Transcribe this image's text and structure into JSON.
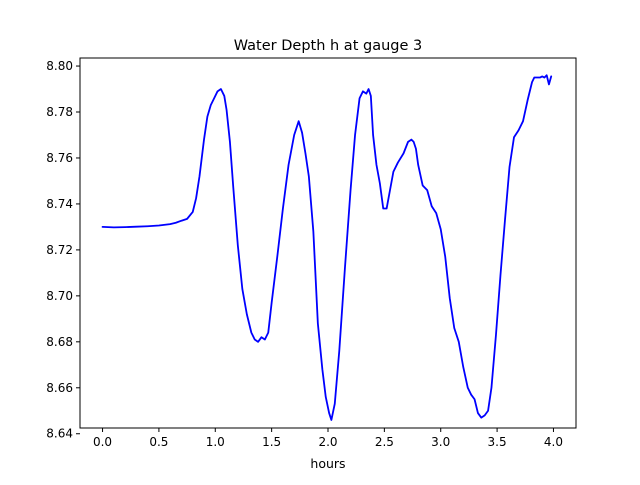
{
  "chart_data": {
    "type": "line",
    "title": "Water Depth h at gauge 3",
    "xlabel": "hours",
    "ylabel": "",
    "xlim": [
      -0.2,
      4.2
    ],
    "ylim": [
      8.6425,
      8.8035
    ],
    "xticks": [
      0.0,
      0.5,
      1.0,
      1.5,
      2.0,
      2.5,
      3.0,
      3.5,
      4.0
    ],
    "xtick_labels": [
      "0.0",
      "0.5",
      "1.0",
      "1.5",
      "2.0",
      "2.5",
      "3.0",
      "3.5",
      "4.0"
    ],
    "yticks": [
      8.64,
      8.66,
      8.68,
      8.7,
      8.72,
      8.74,
      8.76,
      8.78,
      8.8
    ],
    "ytick_labels": [
      "8.64",
      "8.66",
      "8.68",
      "8.70",
      "8.72",
      "8.74",
      "8.76",
      "8.78",
      "8.80"
    ],
    "grid": false,
    "legend": "none",
    "series": [
      {
        "color": "#0000ff",
        "x": [
          0.0,
          0.1,
          0.2,
          0.3,
          0.4,
          0.5,
          0.6,
          0.65,
          0.7,
          0.75,
          0.8,
          0.83,
          0.86,
          0.9,
          0.93,
          0.96,
          0.99,
          1.02,
          1.05,
          1.08,
          1.1,
          1.13,
          1.16,
          1.2,
          1.24,
          1.28,
          1.32,
          1.35,
          1.38,
          1.41,
          1.44,
          1.47,
          1.5,
          1.55,
          1.6,
          1.65,
          1.7,
          1.72,
          1.74,
          1.77,
          1.8,
          1.83,
          1.87,
          1.91,
          1.95,
          1.98,
          2.01,
          2.03,
          2.06,
          2.1,
          2.15,
          2.2,
          2.24,
          2.28,
          2.31,
          2.34,
          2.36,
          2.38,
          2.4,
          2.43,
          2.46,
          2.49,
          2.52,
          2.55,
          2.58,
          2.62,
          2.67,
          2.71,
          2.74,
          2.76,
          2.78,
          2.8,
          2.84,
          2.88,
          2.92,
          2.96,
          3.0,
          3.04,
          3.08,
          3.12,
          3.16,
          3.2,
          3.24,
          3.27,
          3.3,
          3.33,
          3.36,
          3.39,
          3.42,
          3.45,
          3.49,
          3.53,
          3.57,
          3.61,
          3.65,
          3.69,
          3.73,
          3.77,
          3.81,
          3.83,
          3.85,
          3.88,
          3.9,
          3.92,
          3.94,
          3.96,
          3.98
        ],
        "y": [
          8.73,
          8.7298,
          8.7299,
          8.7301,
          8.7303,
          8.7306,
          8.7312,
          8.7318,
          8.7327,
          8.7335,
          8.7365,
          8.7425,
          8.752,
          8.768,
          8.778,
          8.783,
          8.786,
          8.789,
          8.79,
          8.787,
          8.781,
          8.767,
          8.747,
          8.722,
          8.703,
          8.692,
          8.684,
          8.681,
          8.68,
          8.682,
          8.681,
          8.684,
          8.697,
          8.717,
          8.738,
          8.757,
          8.77,
          8.773,
          8.776,
          8.771,
          8.762,
          8.752,
          8.728,
          8.688,
          8.668,
          8.656,
          8.649,
          8.646,
          8.653,
          8.676,
          8.712,
          8.746,
          8.77,
          8.786,
          8.789,
          8.788,
          8.79,
          8.787,
          8.77,
          8.757,
          8.749,
          8.738,
          8.738,
          8.746,
          8.754,
          8.758,
          8.762,
          8.767,
          8.768,
          8.767,
          8.764,
          8.757,
          8.748,
          8.746,
          8.739,
          8.736,
          8.729,
          8.717,
          8.699,
          8.686,
          8.68,
          8.669,
          8.66,
          8.657,
          8.655,
          8.649,
          8.647,
          8.648,
          8.65,
          8.66,
          8.683,
          8.709,
          8.733,
          8.756,
          8.769,
          8.772,
          8.776,
          8.785,
          8.793,
          8.795,
          8.795,
          8.795,
          8.7955,
          8.795,
          8.796,
          8.792,
          8.7955
        ]
      }
    ]
  }
}
